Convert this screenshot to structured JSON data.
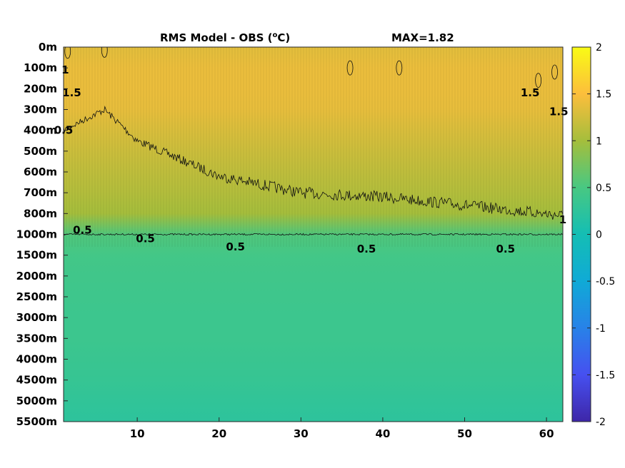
{
  "chart_data": {
    "type": "heatmap",
    "title_left": "RMS Model - OBS (",
    "title_sup": "o",
    "title_unit_tail": "C)",
    "title_right": "MAX=1.82",
    "x": {
      "min": 1,
      "max": 62,
      "ticks": [
        10,
        20,
        30,
        40,
        50,
        60
      ]
    },
    "y": {
      "reversed": true,
      "levels": [
        "0m",
        "100m",
        "200m",
        "300m",
        "400m",
        "500m",
        "600m",
        "700m",
        "800m",
        "1000m",
        "1500m",
        "2000m",
        "2500m",
        "3000m",
        "3500m",
        "4000m",
        "4500m",
        "5000m",
        "5500m"
      ]
    },
    "colorbar": {
      "colormap": "parula",
      "min": -2,
      "max": 2,
      "ticks": [
        "2",
        "1.5",
        "1",
        "0.5",
        "0",
        "-0.5",
        "-1",
        "-1.5",
        "-2"
      ],
      "tick_values": [
        2,
        1.5,
        1,
        0.5,
        0,
        -0.5,
        -1,
        -1.5,
        -2
      ]
    },
    "field_description": {
      "levels_index_values": [
        [
          0,
          1.35
        ],
        [
          1,
          1.4
        ],
        [
          2,
          1.4
        ],
        [
          3,
          1.38
        ],
        [
          4,
          1.3
        ],
        [
          5,
          1.22
        ],
        [
          6,
          1.15
        ],
        [
          7,
          1.08
        ],
        [
          8,
          1.0
        ],
        [
          9,
          0.55
        ],
        [
          10,
          0.45
        ],
        [
          11,
          0.42
        ],
        [
          12,
          0.4
        ],
        [
          13,
          0.38
        ],
        [
          14,
          0.38
        ],
        [
          15,
          0.36
        ],
        [
          16,
          0.33
        ],
        [
          17,
          0.28
        ],
        [
          18,
          0.24
        ]
      ]
    },
    "contours": [
      {
        "level": 1.5,
        "labels": [
          "1.5",
          "1.5",
          "1.5",
          "1.5"
        ],
        "region": "upper edges"
      },
      {
        "level": 1,
        "labels": [
          "1",
          "1",
          "1",
          "1",
          "1",
          "1",
          "1",
          "1",
          "1",
          "1",
          "1"
        ],
        "depth_at_x": [
          [
            1,
            400
          ],
          [
            6,
            300
          ],
          [
            10,
            450
          ],
          [
            20,
            620
          ],
          [
            30,
            700
          ],
          [
            40,
            720
          ],
          [
            50,
            760
          ],
          [
            62,
            820
          ]
        ]
      },
      {
        "level": 0.5,
        "labels": [
          "0.5",
          "0.5",
          "0.5",
          "0.5",
          "0.5"
        ],
        "depth_at_x": [
          [
            1,
            1000
          ],
          [
            10,
            1000
          ],
          [
            30,
            1000
          ],
          [
            62,
            1000
          ]
        ]
      }
    ],
    "contour_labels_shown": [
      {
        "text": "0.5",
        "x": 3.3,
        "depth_index": 8.8
      },
      {
        "text": "0.5",
        "x": 11,
        "depth_index": 9.2
      },
      {
        "text": "0.5",
        "x": 22,
        "depth_index": 9.6
      },
      {
        "text": "0.5",
        "x": 38,
        "depth_index": 9.7
      },
      {
        "text": "0.5",
        "x": 55,
        "depth_index": 9.7
      },
      {
        "text": "1",
        "x": 62,
        "depth_index": 8.3
      },
      {
        "text": "1.5",
        "x": 61.5,
        "depth_index": 3.1
      },
      {
        "text": "1.5",
        "x": 58,
        "depth_index": 2.2
      },
      {
        "text": "1.5",
        "x": 2,
        "depth_index": 2.2
      },
      {
        "text": "1",
        "x": 1.2,
        "depth_index": 1.1
      },
      {
        "text": "0.5",
        "x": 1,
        "depth_index": 4.0
      }
    ]
  }
}
